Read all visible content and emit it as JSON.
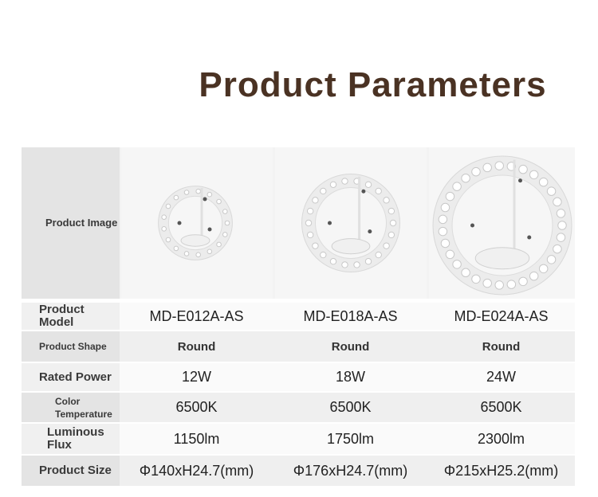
{
  "header": {
    "title": "Product Parameters"
  },
  "table": {
    "image_row_label": "Product Image",
    "rows": [
      [
        "Product Model",
        "MD-E012A-AS",
        "MD-E018A-AS",
        "MD-E024A-AS"
      ],
      [
        "Product Shape",
        "Round",
        "Round",
        "Round"
      ],
      [
        "Rated Power",
        "12W",
        "18W",
        "24W"
      ],
      [
        "Color Temperature",
        "6500K",
        "6500K",
        "6500K"
      ],
      [
        "Luminous Flux",
        "1150lm",
        "1750lm",
        "2300lm"
      ],
      [
        "Product Size",
        "Φ140xH24.7(mm)",
        "Φ176xH24.7(mm)",
        "Φ215xH25.2(mm)"
      ]
    ]
  }
}
